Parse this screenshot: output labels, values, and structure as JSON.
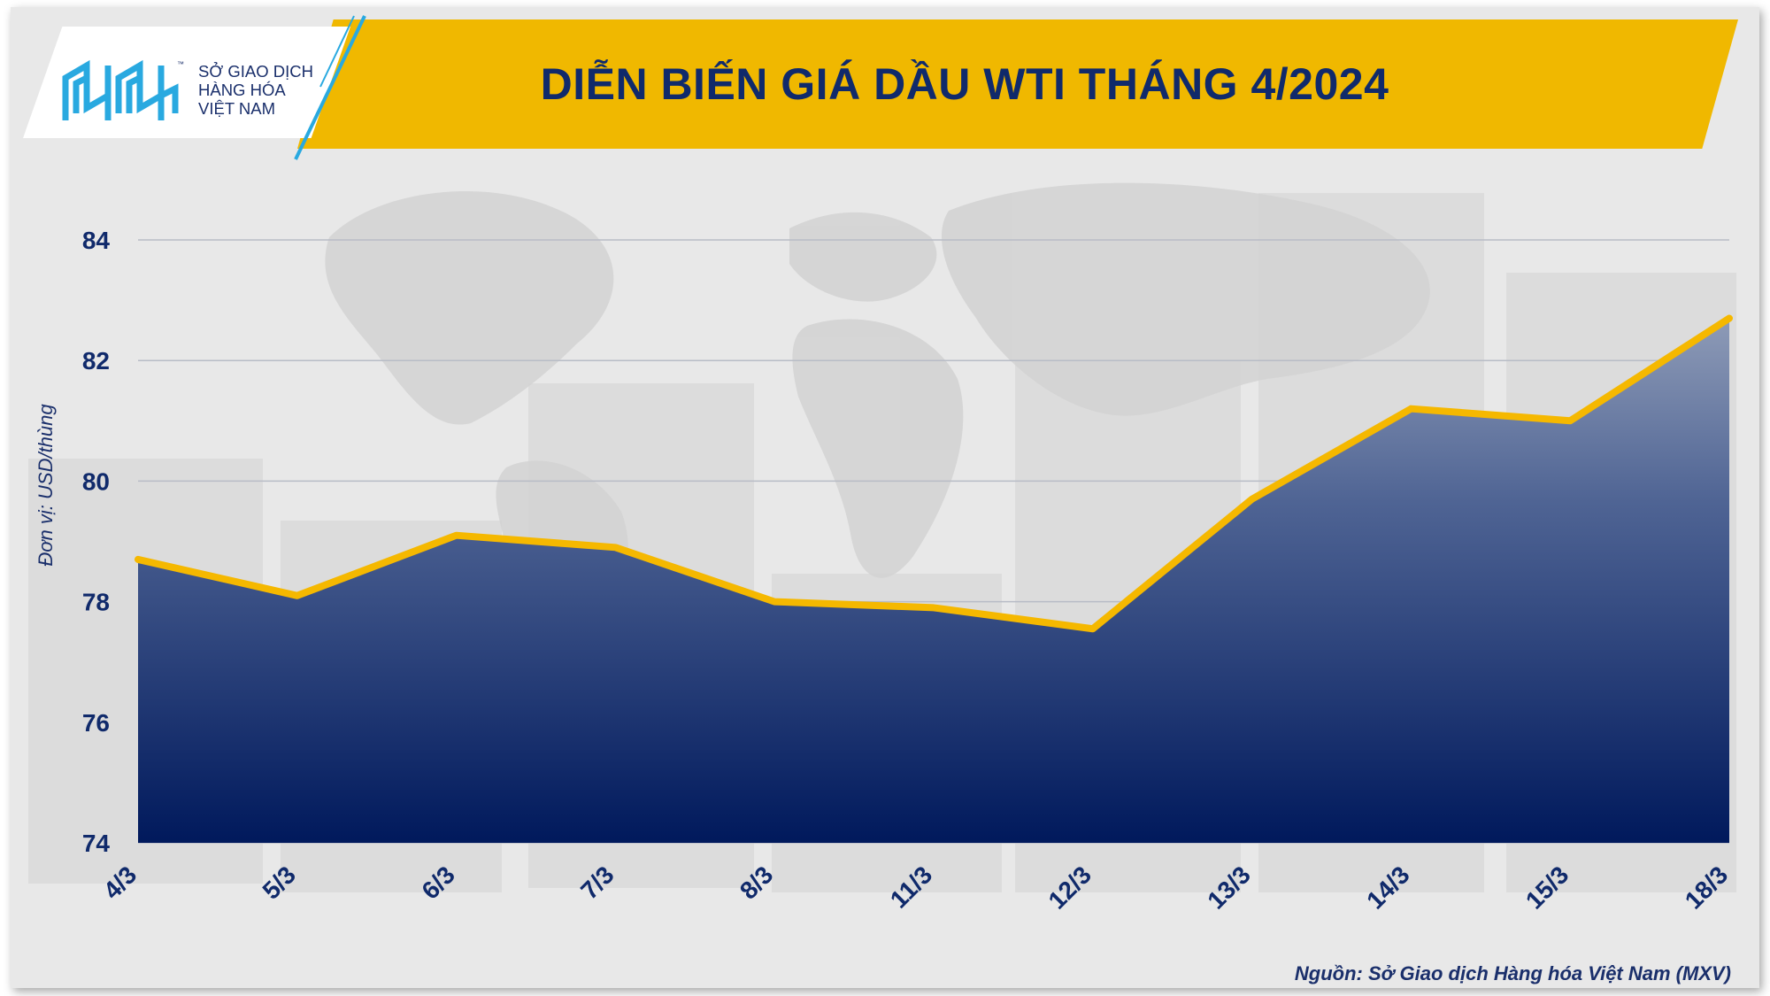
{
  "header": {
    "title": "DIỄN BIẾN GIÁ DẦU WTI THÁNG 4/2024",
    "logo_lines": [
      "SỞ GIAO DỊCH",
      "HÀNG HÓA",
      "VIỆT NAM"
    ],
    "logo_tm": "™"
  },
  "footer": {
    "source": "Nguồn: Sở Giao dịch Hàng hóa Việt Nam (MXV)"
  },
  "colors": {
    "banner": "#f0b800",
    "title": "#102a6b",
    "line": "#f5b800",
    "area_top": "#8e9bb7",
    "area_bottom": "#00195c"
  },
  "chart_data": {
    "type": "area",
    "title": "DIỄN BIẾN GIÁ DẦU WTI THÁNG 4/2024",
    "ylabel": "Đơn vị: USD/thùng",
    "xlabel": "",
    "categories": [
      "4/3",
      "5/3",
      "6/3",
      "7/3",
      "8/3",
      "11/3",
      "12/3",
      "13/3",
      "14/3",
      "15/3",
      "18/3"
    ],
    "series": [
      {
        "values": [
          78.7,
          78.1,
          79.1,
          78.9,
          78.0,
          77.9,
          77.55,
          79.7,
          81.2,
          81.0,
          82.7
        ]
      }
    ],
    "ylim": [
      74,
      84
    ],
    "yticks": [
      "74",
      "76",
      "78",
      "80",
      "82",
      "84"
    ],
    "grid": true,
    "legend": "none"
  }
}
